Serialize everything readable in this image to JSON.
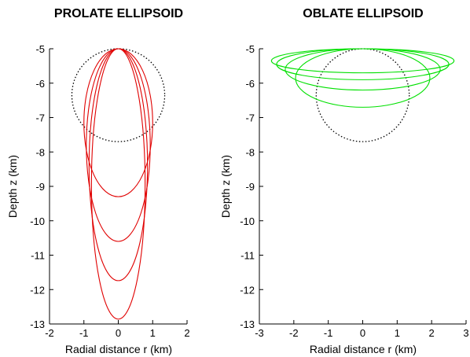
{
  "chart_data": [
    {
      "type": "line",
      "title": "PROLATE ELLIPSOID",
      "xlabel": "Radial distance r (km)",
      "ylabel": "Depth z (km)",
      "xlim": [
        -2,
        2
      ],
      "ylim": [
        -13,
        -5
      ],
      "xticks": [
        -2,
        -1,
        0,
        1,
        2
      ],
      "yticks": [
        -5,
        -6,
        -7,
        -8,
        -9,
        -10,
        -11,
        -12,
        -13
      ],
      "grid": false,
      "legend": "none",
      "sphere": {
        "center_r": 0,
        "center_z": -6.35,
        "radius": 1.35,
        "color": "#000000",
        "style": "dotted"
      },
      "ellipse_color": "#e00000",
      "series": [
        {
          "center_z": -7.15,
          "semi_axis_r": 1.0,
          "semi_axis_z": 2.15
        },
        {
          "center_z": -7.8,
          "semi_axis_r": 0.93,
          "semi_axis_z": 2.8
        },
        {
          "center_z": -8.37,
          "semi_axis_r": 0.85,
          "semi_axis_z": 3.37
        },
        {
          "center_z": -8.93,
          "semi_axis_r": 0.78,
          "semi_axis_z": 3.93
        }
      ]
    },
    {
      "type": "line",
      "title": "OBLATE ELLIPSOID",
      "xlabel": "Radial distance r (km)",
      "ylabel": "Depth z (km)",
      "xlim": [
        -3,
        3
      ],
      "ylim": [
        -13,
        -5
      ],
      "xticks": [
        -3,
        -2,
        -1,
        0,
        1,
        2,
        3
      ],
      "yticks": [
        -5,
        -6,
        -7,
        -8,
        -9,
        -10,
        -11,
        -12,
        -13
      ],
      "grid": false,
      "legend": "none",
      "sphere": {
        "center_r": 0,
        "center_z": -6.35,
        "radius": 1.35,
        "color": "#000000",
        "style": "dotted"
      },
      "ellipse_color": "#00e000",
      "series": [
        {
          "center_z": -5.85,
          "semi_axis_r": 1.95,
          "semi_axis_z": 0.85
        },
        {
          "center_z": -5.6,
          "semi_axis_r": 2.25,
          "semi_axis_z": 0.6
        },
        {
          "center_z": -5.45,
          "semi_axis_r": 2.5,
          "semi_axis_z": 0.45
        },
        {
          "center_z": -5.35,
          "semi_axis_r": 2.65,
          "semi_axis_z": 0.35
        }
      ]
    }
  ]
}
